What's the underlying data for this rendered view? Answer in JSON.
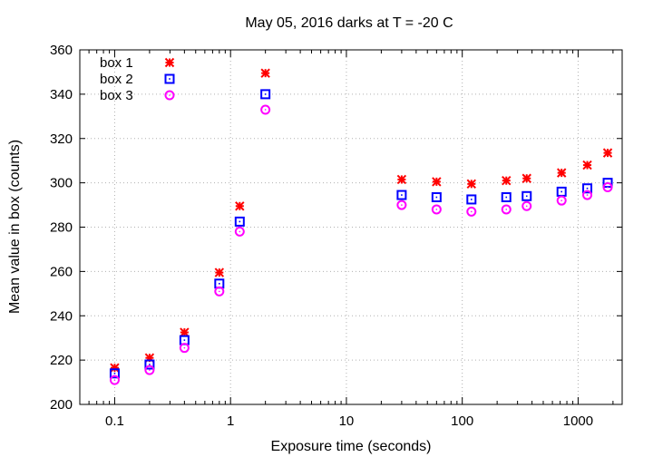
{
  "chart_data": {
    "type": "scatter",
    "title": "May 05, 2016 darks at T = -20 C",
    "xlabel": "Exposure time (seconds)",
    "ylabel": "Mean value in box (counts)",
    "xscale": "log",
    "xlim": [
      0.05,
      2400
    ],
    "ylim": [
      200,
      360
    ],
    "xticks": [
      0.1,
      1,
      10,
      100,
      1000
    ],
    "xtick_labels": [
      "0.1",
      "1",
      "10",
      "100",
      "1000"
    ],
    "yticks": [
      200,
      220,
      240,
      260,
      280,
      300,
      320,
      340,
      360
    ],
    "ytick_labels": [
      "200",
      "220",
      "240",
      "260",
      "280",
      "300",
      "320",
      "340",
      "360"
    ],
    "grid": true,
    "legend_position": "top-left",
    "x": [
      0.1,
      0.2,
      0.4,
      0.8,
      1.2,
      2,
      30,
      60,
      120,
      240,
      360,
      720,
      1200,
      1800
    ],
    "series": [
      {
        "name": "box 1",
        "marker": "asterisk",
        "color": "#ff0000",
        "values": [
          216.5,
          221,
          232.5,
          259.5,
          289.5,
          349.5,
          301.5,
          300.5,
          299.5,
          301,
          302,
          304.5,
          308,
          313.5
        ]
      },
      {
        "name": "box 2",
        "marker": "square",
        "color": "#0000ff",
        "values": [
          214,
          218,
          229,
          254.5,
          282.5,
          340,
          294.5,
          293.5,
          292.5,
          293.5,
          294,
          296,
          297.5,
          300
        ]
      },
      {
        "name": "box 3",
        "marker": "circle",
        "color": "#ff00ff",
        "values": [
          211,
          215.5,
          225.5,
          251,
          278,
          333,
          290,
          288,
          287,
          288,
          289.5,
          292,
          294.5,
          298
        ]
      }
    ]
  }
}
